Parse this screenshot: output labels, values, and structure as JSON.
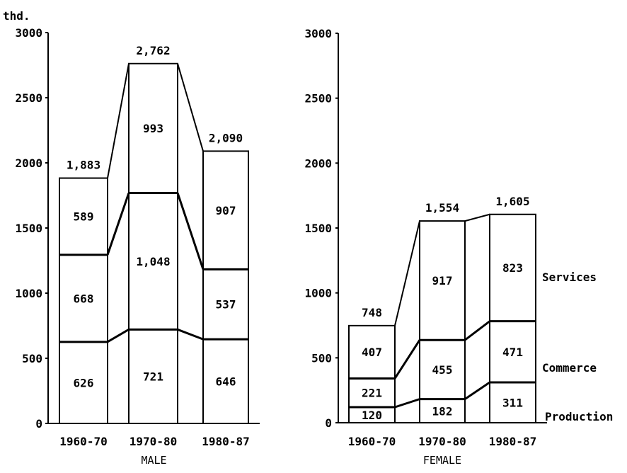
{
  "chart_data": [
    {
      "type": "stacked-bar",
      "ylabel": "thd.",
      "xlabel": "MALE",
      "ylim": [
        0,
        3000
      ],
      "yticks": [
        "0",
        "500",
        "1000",
        "1500",
        "2000",
        "2500",
        "3000"
      ],
      "categories": [
        "1960-70",
        "1970-80",
        "1980-87"
      ],
      "series": [
        {
          "name": "Production",
          "values": [
            626,
            721,
            646
          ],
          "labels": [
            "626",
            "721",
            "646"
          ]
        },
        {
          "name": "Commerce",
          "values": [
            668,
            1048,
            537
          ],
          "labels": [
            "668",
            "1,048",
            "537"
          ]
        },
        {
          "name": "Services",
          "values": [
            589,
            993,
            907
          ],
          "labels": [
            "589",
            "993",
            "907"
          ]
        }
      ],
      "totals": [
        1883,
        2762,
        2090
      ],
      "total_labels": [
        "1,883",
        "2,762",
        "2,090"
      ]
    },
    {
      "type": "stacked-bar",
      "xlabel": "FEMALE",
      "ylim": [
        0,
        3000
      ],
      "yticks": [
        "0",
        "500",
        "1000",
        "1500",
        "2000",
        "2500",
        "3000"
      ],
      "categories": [
        "1960-70",
        "1970-80",
        "1980-87"
      ],
      "series": [
        {
          "name": "Production",
          "values": [
            120,
            182,
            311
          ],
          "labels": [
            "120",
            "182",
            "311"
          ]
        },
        {
          "name": "Commerce",
          "values": [
            221,
            455,
            471
          ],
          "labels": [
            "221",
            "455",
            "471"
          ]
        },
        {
          "name": "Services",
          "values": [
            407,
            917,
            823
          ],
          "labels": [
            "407",
            "917",
            "823"
          ]
        }
      ],
      "totals": [
        748,
        1554,
        1605
      ],
      "total_labels": [
        "748",
        "1,554",
        "1,605"
      ]
    }
  ],
  "legend": {
    "services": "Services",
    "commerce": "Commerce",
    "production": "Production"
  },
  "colors": {
    "ink": "#000000",
    "background": "#ffffff"
  }
}
